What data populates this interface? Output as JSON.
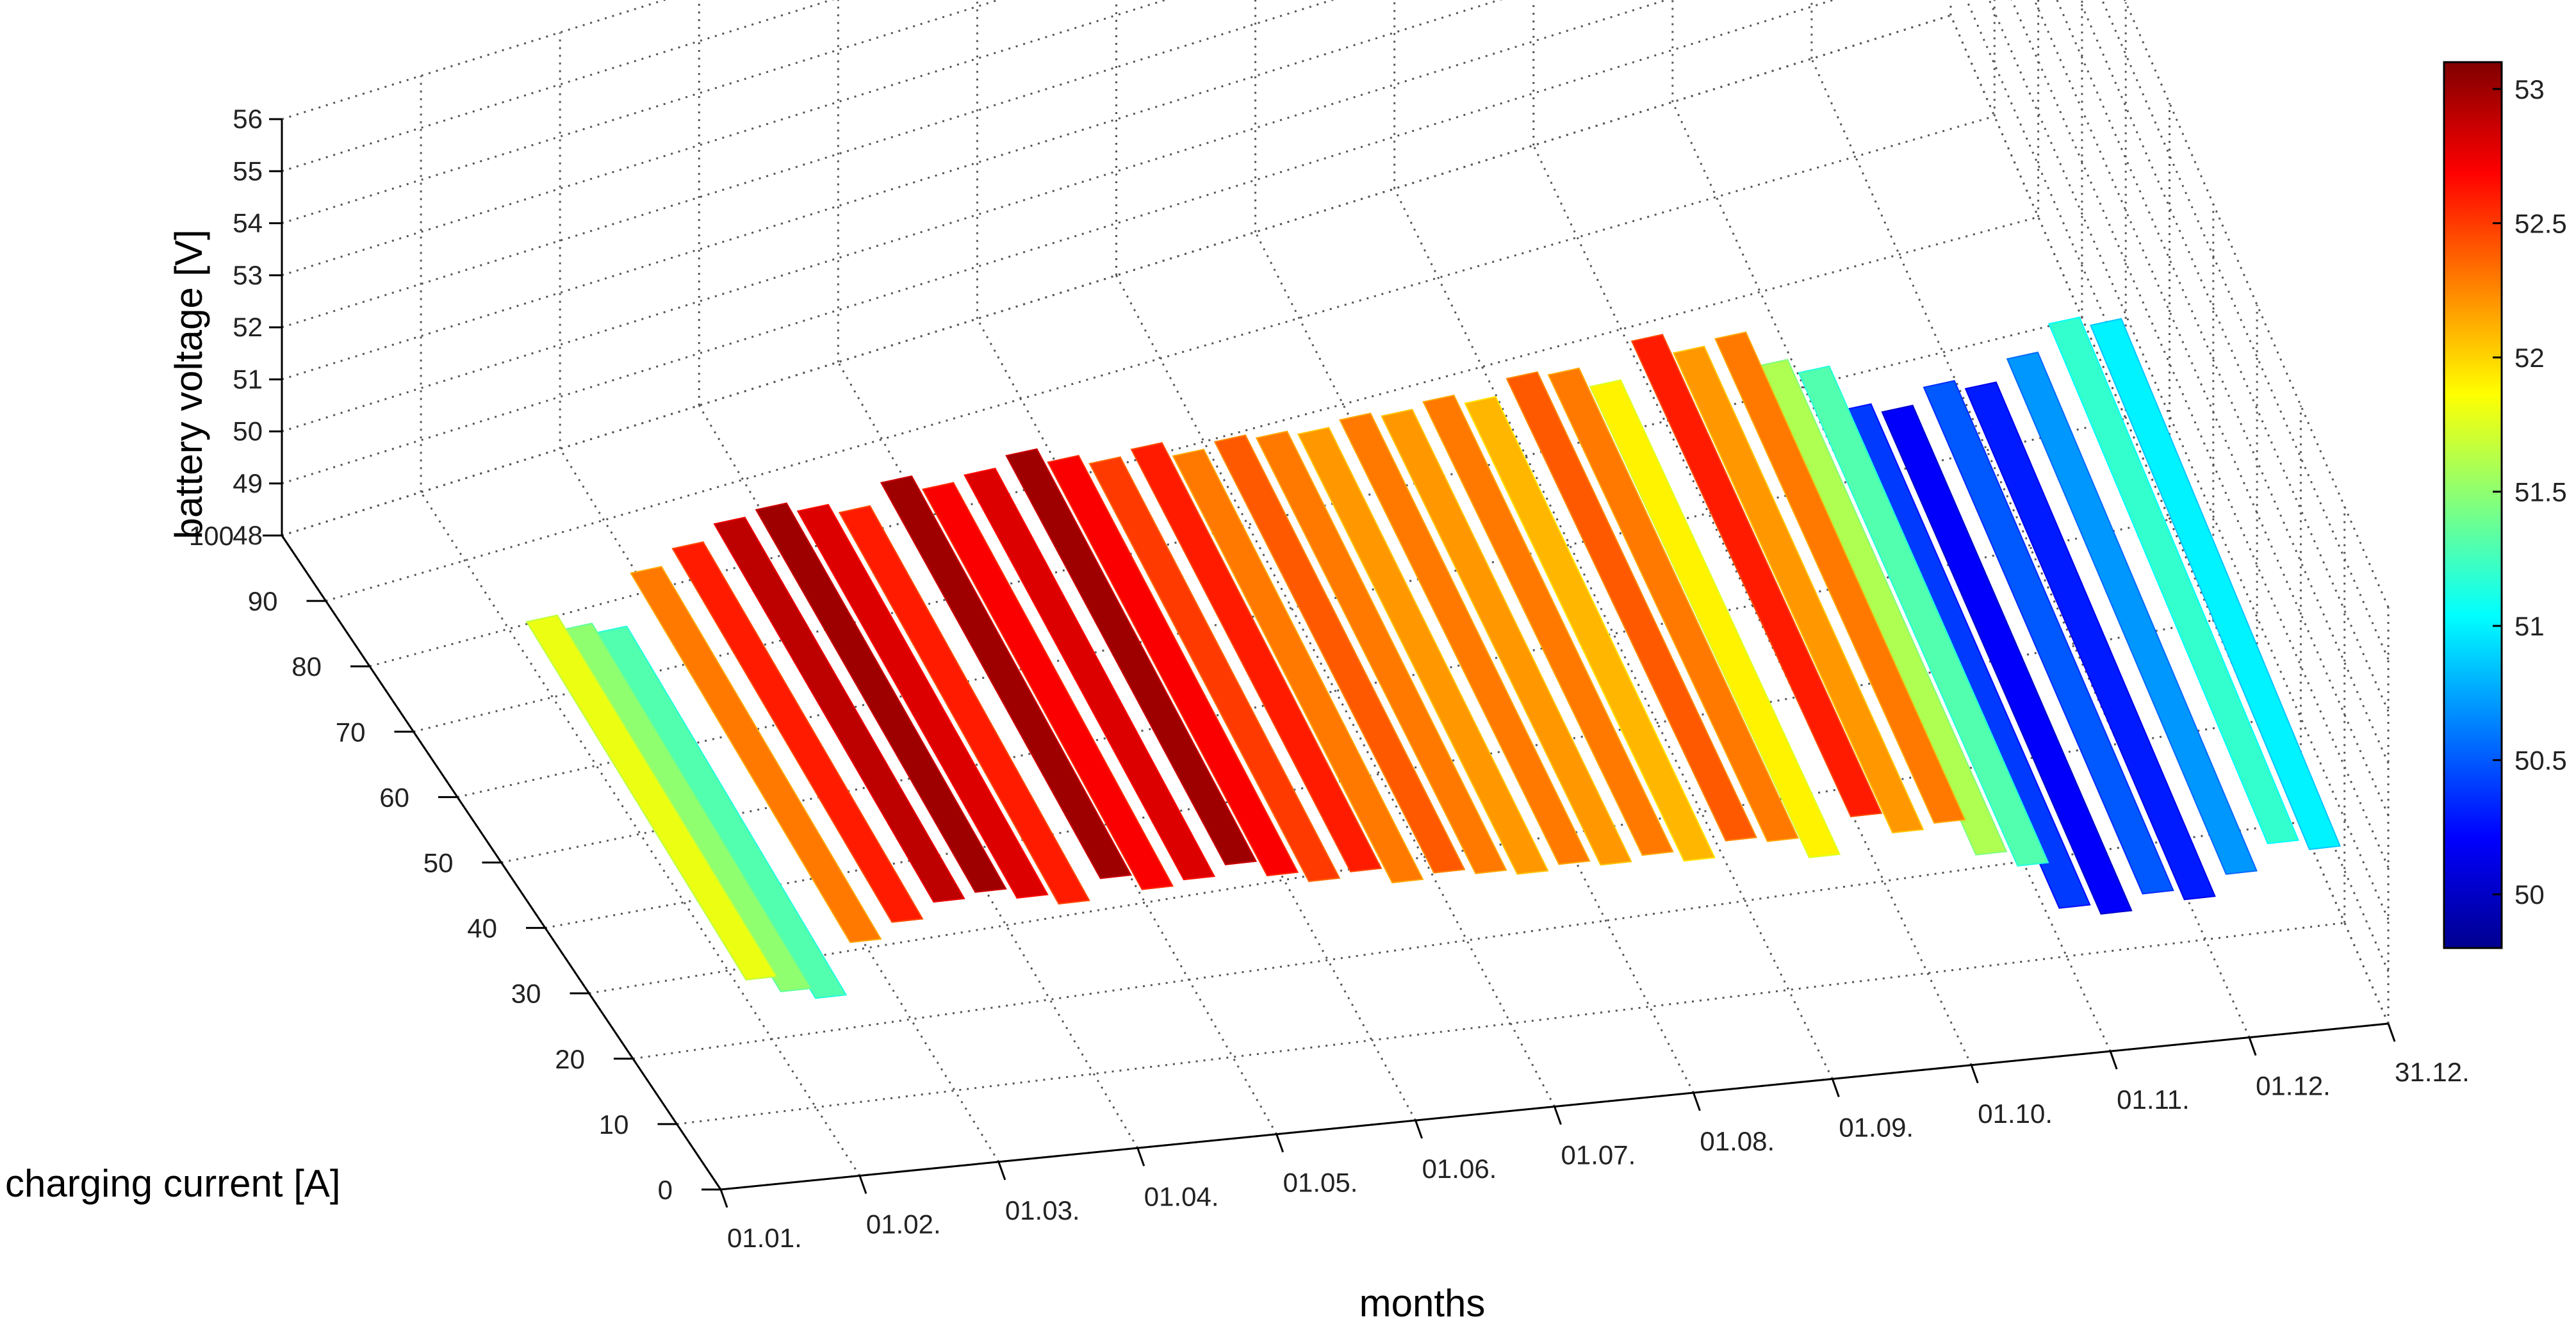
{
  "chart_data": {
    "type": "surface3d",
    "xlabel": "months",
    "ylabel": "charging current [A]",
    "zlabel": "battery voltage [V]",
    "x_ticks": [
      "01.01.",
      "01.02.",
      "01.03.",
      "01.04.",
      "01.05.",
      "01.06.",
      "01.07.",
      "01.08.",
      "01.09.",
      "01.10.",
      "01.11.",
      "01.12.",
      "31.12."
    ],
    "y_ticks": [
      "0",
      "10",
      "20",
      "30",
      "40",
      "50",
      "60",
      "70",
      "80",
      "90",
      "100"
    ],
    "z_ticks": [
      "48",
      "49",
      "50",
      "51",
      "52",
      "53",
      "54",
      "55",
      "56"
    ],
    "ylim": [
      0,
      100
    ],
    "zlim": [
      48,
      56
    ],
    "grid": true,
    "colormap": "jet",
    "colorbar": {
      "range": [
        49.8,
        53.1
      ],
      "ticks": [
        "50",
        "50.5",
        "51",
        "51.5",
        "52",
        "52.5",
        "53"
      ]
    },
    "series": [
      {
        "month": [
          0.45,
          0.7,
          0.95,
          1.2,
          1.5,
          1.8,
          2.1,
          2.4,
          2.7,
          3.0,
          3.3,
          3.6,
          3.9,
          4.2,
          4.5,
          4.8,
          5.1,
          5.4,
          5.7,
          6.0,
          6.3,
          6.6,
          6.9,
          7.2,
          7.5,
          7.8,
          8.1,
          8.4,
          8.7,
          9.0,
          9.3,
          9.6,
          9.9,
          10.2,
          10.5,
          10.8,
          11.1,
          11.4,
          11.7
        ],
        "voltage": [
          51.8,
          51.5,
          51.3,
          52.3,
          52.6,
          52.9,
          53.0,
          52.8,
          52.6,
          53.0,
          52.7,
          52.8,
          53.0,
          52.7,
          52.5,
          52.6,
          52.3,
          52.4,
          52.3,
          52.2,
          52.3,
          52.2,
          52.3,
          52.1,
          52.4,
          52.3,
          51.9,
          52.6,
          52.2,
          52.3,
          51.6,
          51.3,
          50.4,
          50.2,
          50.5,
          50.3,
          50.7,
          51.2,
          51.0
        ]
      }
    ]
  },
  "colors": {
    "grid": "#555555",
    "axis": "#000000",
    "background": "#ffffff"
  }
}
